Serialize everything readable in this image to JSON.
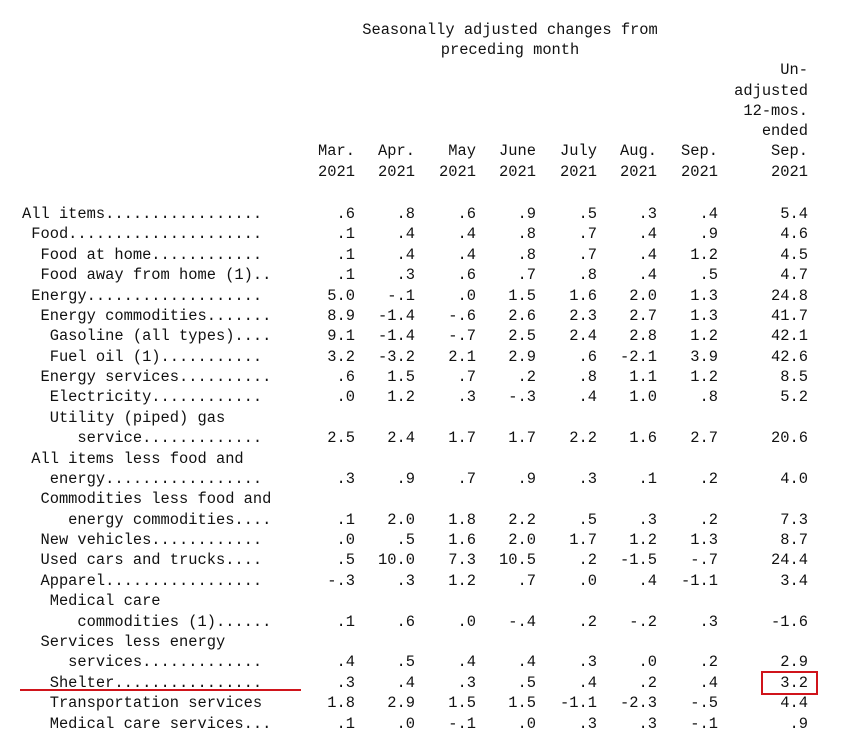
{
  "header": {
    "title_line1": "Seasonally adjusted changes from",
    "title_line2": "preceding month",
    "columns": [
      {
        "lines": [
          "Mar.",
          "2021"
        ]
      },
      {
        "lines": [
          "Apr.",
          "2021"
        ]
      },
      {
        "lines": [
          "May",
          "2021"
        ]
      },
      {
        "lines": [
          "June",
          "2021"
        ]
      },
      {
        "lines": [
          "July",
          "2021"
        ]
      },
      {
        "lines": [
          "Aug.",
          "2021"
        ]
      },
      {
        "lines": [
          "Sep.",
          "2021"
        ]
      },
      {
        "lines": [
          "Un-",
          "adjusted",
          "12-mos.",
          "ended",
          "Sep.",
          "2021"
        ]
      }
    ]
  },
  "rows": [
    {
      "label": "All items.................",
      "values": [
        ".6",
        ".8",
        ".6",
        ".9",
        ".5",
        ".3",
        ".4",
        "5.4"
      ]
    },
    {
      "label": " Food.....................",
      "values": [
        ".1",
        ".4",
        ".4",
        ".8",
        ".7",
        ".4",
        ".9",
        "4.6"
      ]
    },
    {
      "label": "  Food at home............",
      "values": [
        ".1",
        ".4",
        ".4",
        ".8",
        ".7",
        ".4",
        "1.2",
        "4.5"
      ]
    },
    {
      "label": "  Food away from home (1)..",
      "values": [
        ".1",
        ".3",
        ".6",
        ".7",
        ".8",
        ".4",
        ".5",
        "4.7"
      ]
    },
    {
      "label": " Energy...................",
      "values": [
        "5.0",
        "-.1",
        ".0",
        "1.5",
        "1.6",
        "2.0",
        "1.3",
        "24.8"
      ]
    },
    {
      "label": "  Energy commodities.......",
      "values": [
        "8.9",
        "-1.4",
        "-.6",
        "2.6",
        "2.3",
        "2.7",
        "1.3",
        "41.7"
      ]
    },
    {
      "label": "   Gasoline (all types)....",
      "values": [
        "9.1",
        "-1.4",
        "-.7",
        "2.5",
        "2.4",
        "2.8",
        "1.2",
        "42.1"
      ]
    },
    {
      "label": "   Fuel oil (1)...........",
      "values": [
        "3.2",
        "-3.2",
        "2.1",
        "2.9",
        ".6",
        "-2.1",
        "3.9",
        "42.6"
      ]
    },
    {
      "label": "  Energy services..........",
      "values": [
        ".6",
        "1.5",
        ".7",
        ".2",
        ".8",
        "1.1",
        "1.2",
        "8.5"
      ]
    },
    {
      "label": "   Electricity............",
      "values": [
        ".0",
        "1.2",
        ".3",
        "-.3",
        ".4",
        "1.0",
        ".8",
        "5.2"
      ]
    },
    {
      "label": "   Utility (piped) gas",
      "values": [
        "",
        "",
        "",
        "",
        "",
        "",
        "",
        ""
      ]
    },
    {
      "label": "      service.............",
      "values": [
        "2.5",
        "2.4",
        "1.7",
        "1.7",
        "2.2",
        "1.6",
        "2.7",
        "20.6"
      ]
    },
    {
      "label": " All items less food and",
      "values": [
        "",
        "",
        "",
        "",
        "",
        "",
        "",
        ""
      ]
    },
    {
      "label": "   energy.................",
      "values": [
        ".3",
        ".9",
        ".7",
        ".9",
        ".3",
        ".1",
        ".2",
        "4.0"
      ]
    },
    {
      "label": "  Commodities less food and",
      "values": [
        "",
        "",
        "",
        "",
        "",
        "",
        "",
        ""
      ]
    },
    {
      "label": "     energy commodities....",
      "values": [
        ".1",
        "2.0",
        "1.8",
        "2.2",
        ".5",
        ".3",
        ".2",
        "7.3"
      ]
    },
    {
      "label": "  New vehicles............",
      "values": [
        ".0",
        ".5",
        "1.6",
        "2.0",
        "1.7",
        "1.2",
        "1.3",
        "8.7"
      ]
    },
    {
      "label": "  Used cars and trucks....",
      "values": [
        ".5",
        "10.0",
        "7.3",
        "10.5",
        ".2",
        "-1.5",
        "-.7",
        "24.4"
      ]
    },
    {
      "label": "  Apparel.................",
      "values": [
        "-.3",
        ".3",
        "1.2",
        ".7",
        ".0",
        ".4",
        "-1.1",
        "3.4"
      ]
    },
    {
      "label": "   Medical care",
      "values": [
        "",
        "",
        "",
        "",
        "",
        "",
        "",
        ""
      ]
    },
    {
      "label": "      commodities (1)......",
      "values": [
        ".1",
        ".6",
        ".0",
        "-.4",
        ".2",
        "-.2",
        ".3",
        "-1.6"
      ]
    },
    {
      "label": "  Services less energy",
      "values": [
        "",
        "",
        "",
        "",
        "",
        "",
        "",
        ""
      ]
    },
    {
      "label": "     services.............",
      "values": [
        ".4",
        ".5",
        ".4",
        ".4",
        ".3",
        ".0",
        ".2",
        "2.9"
      ]
    },
    {
      "label": "   Shelter................",
      "values": [
        ".3",
        ".4",
        ".3",
        ".5",
        ".4",
        ".2",
        ".4",
        "3.2"
      ]
    },
    {
      "label": "   Transportation services",
      "values": [
        "1.8",
        "2.9",
        "1.5",
        "1.5",
        "-1.1",
        "-2.3",
        "-.5",
        "4.4"
      ]
    },
    {
      "label": "   Medical care services...",
      "values": [
        ".1",
        ".0",
        "-.1",
        ".0",
        ".3",
        ".3",
        "-.1",
        ".9"
      ]
    }
  ],
  "highlight": {
    "underline_color": "#d0141b",
    "box_color": "#d0141b"
  }
}
